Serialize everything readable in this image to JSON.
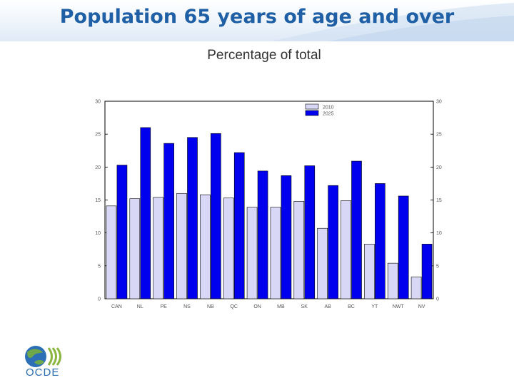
{
  "header": {
    "title": "Population 65 years of age and over"
  },
  "chart_data": {
    "type": "bar",
    "title": "Population 65 years of age and over",
    "subtitle": "Percentage of total",
    "categories": [
      "CAN",
      "NL",
      "PE",
      "NS",
      "NB",
      "QC",
      "ON",
      "MB",
      "SK",
      "AB",
      "BC",
      "YT",
      "NWT",
      "NV"
    ],
    "series": [
      {
        "name": "2010",
        "color": "#d8d8f6",
        "values": [
          14.1,
          15.2,
          15.4,
          16.0,
          15.8,
          15.3,
          13.9,
          13.9,
          14.8,
          10.7,
          14.9,
          8.3,
          5.4,
          3.3
        ]
      },
      {
        "name": "2025",
        "color": "#0000ee",
        "values": [
          20.3,
          26.0,
          23.6,
          24.5,
          25.1,
          22.2,
          19.4,
          18.7,
          20.2,
          17.2,
          20.9,
          17.5,
          15.6,
          8.3
        ]
      }
    ],
    "ylim": [
      0,
      30
    ],
    "yticks": [
      0,
      5,
      10,
      15,
      20,
      25,
      30
    ],
    "xlabel": "",
    "ylabel": "",
    "legend": "top-center",
    "grid": false
  },
  "logo": {
    "text": "OCDE",
    "icon": "oecd-globe-icon"
  }
}
